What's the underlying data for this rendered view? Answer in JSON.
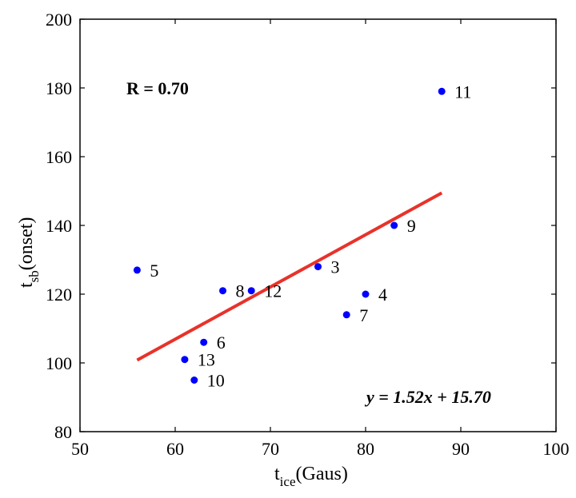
{
  "chart_data": {
    "type": "scatter",
    "xlabel": {
      "main": "t",
      "sub": "ice",
      "rest": "(Gaus)"
    },
    "ylabel": {
      "main": "t",
      "sub": "sb",
      "rest": "(onset)"
    },
    "xlim": [
      50,
      100
    ],
    "ylim": [
      80,
      200
    ],
    "xticks": [
      50,
      60,
      70,
      80,
      90,
      100
    ],
    "yticks": [
      80,
      100,
      120,
      140,
      160,
      180,
      200
    ],
    "grid": false,
    "points": [
      {
        "label": "3",
        "x": 75,
        "y": 128
      },
      {
        "label": "4",
        "x": 80,
        "y": 120
      },
      {
        "label": "5",
        "x": 56,
        "y": 127
      },
      {
        "label": "6",
        "x": 63,
        "y": 106
      },
      {
        "label": "7",
        "x": 78,
        "y": 114
      },
      {
        "label": "8",
        "x": 65,
        "y": 121
      },
      {
        "label": "9",
        "x": 83,
        "y": 140
      },
      {
        "label": "10",
        "x": 62,
        "y": 95
      },
      {
        "label": "11",
        "x": 88,
        "y": 179
      },
      {
        "label": "12",
        "x": 68,
        "y": 121
      },
      {
        "label": "13",
        "x": 61,
        "y": 101
      }
    ],
    "fit_line": {
      "slope": 1.52,
      "intercept": 15.7,
      "x_range": [
        56,
        88
      ]
    },
    "annotations": {
      "r_text": "R = 0.70",
      "equation_text": "y = 1.52x + 15.70"
    },
    "colors": {
      "points": "#0000ff",
      "fit": "#e8322a",
      "axes": "#000000"
    }
  }
}
